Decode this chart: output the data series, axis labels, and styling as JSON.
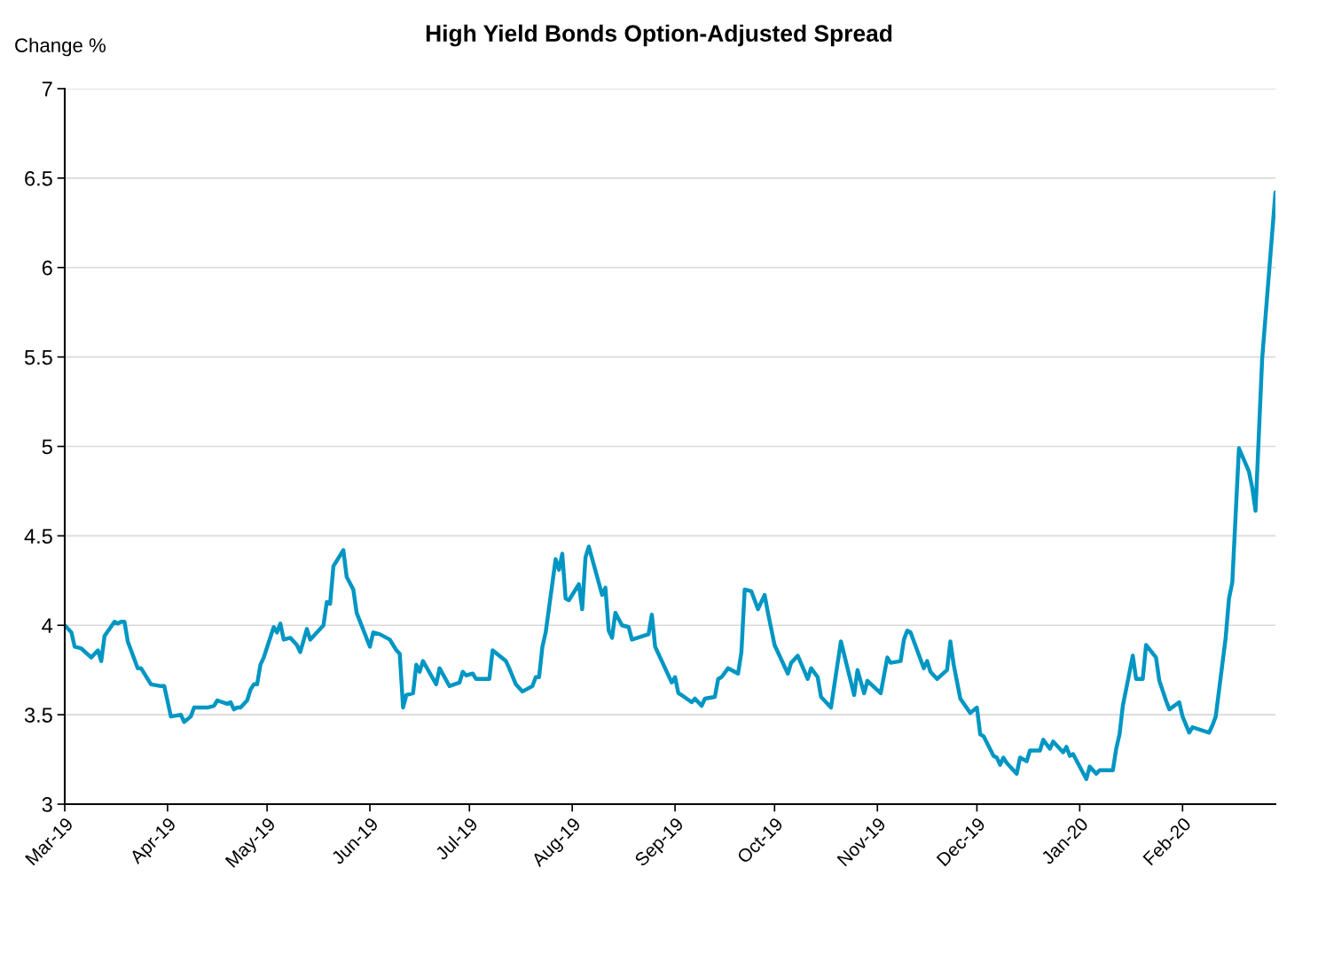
{
  "chart_data": {
    "type": "line",
    "title": "High Yield Bonds Option-Adjusted Spread",
    "ylabel": "Change %",
    "x": [
      "2019-03-01",
      "2019-03-03",
      "2019-03-04",
      "2019-03-06",
      "2019-03-09",
      "2019-03-11",
      "2019-03-12",
      "2019-03-13",
      "2019-03-16",
      "2019-03-17",
      "2019-03-18",
      "2019-03-19",
      "2019-03-20",
      "2019-03-23",
      "2019-03-24",
      "2019-03-26",
      "2019-03-27",
      "2019-03-30",
      "2019-03-31",
      "2019-04-02",
      "2019-04-05",
      "2019-04-06",
      "2019-04-08",
      "2019-04-09",
      "2019-04-13",
      "2019-04-15",
      "2019-04-16",
      "2019-04-19",
      "2019-04-20",
      "2019-04-21",
      "2019-04-22",
      "2019-04-23",
      "2019-04-25",
      "2019-04-26",
      "2019-04-27",
      "2019-04-28",
      "2019-04-29",
      "2019-04-30",
      "2019-05-03",
      "2019-05-04",
      "2019-05-05",
      "2019-05-06",
      "2019-05-08",
      "2019-05-10",
      "2019-05-11",
      "2019-05-13",
      "2019-05-14",
      "2019-05-18",
      "2019-05-19",
      "2019-05-20",
      "2019-05-21",
      "2019-05-24",
      "2019-05-25",
      "2019-05-27",
      "2019-05-28",
      "2019-06-01",
      "2019-06-02",
      "2019-06-04",
      "2019-06-07",
      "2019-06-09",
      "2019-06-10",
      "2019-06-11",
      "2019-06-12",
      "2019-06-14",
      "2019-06-15",
      "2019-06-16",
      "2019-06-17",
      "2019-06-21",
      "2019-06-22",
      "2019-06-25",
      "2019-06-28",
      "2019-06-29",
      "2019-06-30",
      "2019-07-02",
      "2019-07-03",
      "2019-07-07",
      "2019-07-08",
      "2019-07-12",
      "2019-07-13",
      "2019-07-15",
      "2019-07-17",
      "2019-07-20",
      "2019-07-21",
      "2019-07-22",
      "2019-07-23",
      "2019-07-24",
      "2019-07-27",
      "2019-07-28",
      "2019-07-29",
      "2019-07-30",
      "2019-07-31",
      "2019-08-03",
      "2019-08-04",
      "2019-08-05",
      "2019-08-06",
      "2019-08-10",
      "2019-08-11",
      "2019-08-12",
      "2019-08-13",
      "2019-08-14",
      "2019-08-16",
      "2019-08-18",
      "2019-08-19",
      "2019-08-24",
      "2019-08-25",
      "2019-08-26",
      "2019-08-31",
      "2019-09-01",
      "2019-09-02",
      "2019-09-03",
      "2019-09-06",
      "2019-09-07",
      "2019-09-09",
      "2019-09-10",
      "2019-09-13",
      "2019-09-14",
      "2019-09-15",
      "2019-09-17",
      "2019-09-20",
      "2019-09-21",
      "2019-09-22",
      "2019-09-24",
      "2019-09-26",
      "2019-09-28",
      "2019-09-29",
      "2019-10-01",
      "2019-10-05",
      "2019-10-06",
      "2019-10-08",
      "2019-10-11",
      "2019-10-12",
      "2019-10-14",
      "2019-10-15",
      "2019-10-18",
      "2019-10-21",
      "2019-10-25",
      "2019-10-26",
      "2019-10-28",
      "2019-10-29",
      "2019-11-02",
      "2019-11-04",
      "2019-11-05",
      "2019-11-08",
      "2019-11-09",
      "2019-11-10",
      "2019-11-11",
      "2019-11-15",
      "2019-11-16",
      "2019-11-17",
      "2019-11-19",
      "2019-11-22",
      "2019-11-23",
      "2019-11-24",
      "2019-11-26",
      "2019-11-29",
      "2019-12-01",
      "2019-12-02",
      "2019-12-03",
      "2019-12-06",
      "2019-12-07",
      "2019-12-08",
      "2019-12-09",
      "2019-12-10",
      "2019-12-13",
      "2019-12-14",
      "2019-12-16",
      "2019-12-17",
      "2019-12-20",
      "2019-12-21",
      "2019-12-23",
      "2019-12-24",
      "2019-12-27",
      "2019-12-28",
      "2019-12-29",
      "2019-12-30",
      "2020-01-03",
      "2020-01-04",
      "2020-01-06",
      "2020-01-07",
      "2020-01-11",
      "2020-01-12",
      "2020-01-13",
      "2020-01-14",
      "2020-01-17",
      "2020-01-18",
      "2020-01-20",
      "2020-01-21",
      "2020-01-24",
      "2020-01-25",
      "2020-01-27",
      "2020-01-28",
      "2020-01-31",
      "2020-02-01",
      "2020-02-03",
      "2020-02-04",
      "2020-02-09",
      "2020-02-10",
      "2020-02-11",
      "2020-02-14",
      "2020-02-15",
      "2020-02-16",
      "2020-02-18",
      "2020-02-21",
      "2020-02-22",
      "2020-02-23",
      "2020-02-25",
      "2020-02-29"
    ],
    "series": [
      {
        "color": "#0096c3",
        "values": [
          4.0,
          3.96,
          3.88,
          3.87,
          3.82,
          3.86,
          3.8,
          3.94,
          4.02,
          4.01,
          4.02,
          4.02,
          3.91,
          3.76,
          3.76,
          3.7,
          3.67,
          3.66,
          3.66,
          3.49,
          3.5,
          3.46,
          3.49,
          3.54,
          3.54,
          3.55,
          3.58,
          3.56,
          3.57,
          3.53,
          3.54,
          3.54,
          3.58,
          3.64,
          3.67,
          3.67,
          3.78,
          3.82,
          3.99,
          3.96,
          4.01,
          3.92,
          3.93,
          3.89,
          3.85,
          3.98,
          3.92,
          4.0,
          4.13,
          4.12,
          4.33,
          4.42,
          4.27,
          4.2,
          4.07,
          3.88,
          3.96,
          3.95,
          3.92,
          3.86,
          3.84,
          3.54,
          3.61,
          3.62,
          3.78,
          3.74,
          3.8,
          3.67,
          3.76,
          3.66,
          3.68,
          3.74,
          3.72,
          3.73,
          3.7,
          3.7,
          3.86,
          3.8,
          3.76,
          3.67,
          3.63,
          3.66,
          3.71,
          3.71,
          3.88,
          3.96,
          4.37,
          4.31,
          4.4,
          4.15,
          4.14,
          4.23,
          4.09,
          4.38,
          4.44,
          4.17,
          4.21,
          3.97,
          3.93,
          4.07,
          4.0,
          3.99,
          3.92,
          3.95,
          4.06,
          3.88,
          3.68,
          3.71,
          3.62,
          3.61,
          3.57,
          3.59,
          3.55,
          3.59,
          3.6,
          3.7,
          3.71,
          3.76,
          3.73,
          3.85,
          4.2,
          4.19,
          4.09,
          4.17,
          4.07,
          3.89,
          3.73,
          3.79,
          3.83,
          3.7,
          3.76,
          3.71,
          3.6,
          3.54,
          3.91,
          3.61,
          3.75,
          3.62,
          3.69,
          3.62,
          3.82,
          3.79,
          3.8,
          3.92,
          3.97,
          3.96,
          3.76,
          3.8,
          3.74,
          3.7,
          3.75,
          3.91,
          3.78,
          3.59,
          3.51,
          3.54,
          3.39,
          3.38,
          3.27,
          3.26,
          3.22,
          3.26,
          3.23,
          3.17,
          3.26,
          3.24,
          3.3,
          3.3,
          3.36,
          3.31,
          3.35,
          3.29,
          3.32,
          3.27,
          3.28,
          3.14,
          3.21,
          3.17,
          3.19,
          3.19,
          3.31,
          3.39,
          3.55,
          3.83,
          3.7,
          3.7,
          3.89,
          3.82,
          3.69,
          3.58,
          3.53,
          3.57,
          3.49,
          3.4,
          3.43,
          3.4,
          3.44,
          3.49,
          3.93,
          4.15,
          4.24,
          4.99,
          4.86,
          4.77,
          4.64,
          5.49,
          6.42
        ]
      }
    ],
    "xlim": [
      "2019-03-01",
      "2020-02-29"
    ],
    "xticks": [
      {
        "value": "2019-03-01",
        "label": "Mar-19"
      },
      {
        "value": "2019-04-01",
        "label": "Apr-19"
      },
      {
        "value": "2019-05-01",
        "label": "May-19"
      },
      {
        "value": "2019-06-01",
        "label": "Jun-19"
      },
      {
        "value": "2019-07-01",
        "label": "Jul-19"
      },
      {
        "value": "2019-08-01",
        "label": "Aug-19"
      },
      {
        "value": "2019-09-01",
        "label": "Sep-19"
      },
      {
        "value": "2019-10-01",
        "label": "Oct-19"
      },
      {
        "value": "2019-11-01",
        "label": "Nov-19"
      },
      {
        "value": "2019-12-01",
        "label": "Dec-19"
      },
      {
        "value": "2020-01-01",
        "label": "Jan-20"
      },
      {
        "value": "2020-02-01",
        "label": "Feb-20"
      }
    ],
    "ylim": [
      3,
      7
    ],
    "yticks": [
      3,
      {
        "value": 3.5,
        "label": "3.5"
      },
      4,
      {
        "value": 4.5,
        "label": "4.5"
      },
      5,
      {
        "value": 5.5,
        "label": "5.5"
      },
      6,
      {
        "value": 6.5,
        "label": "6.5"
      },
      7
    ],
    "grid": "y",
    "marker": "none",
    "line_style": "solid"
  }
}
